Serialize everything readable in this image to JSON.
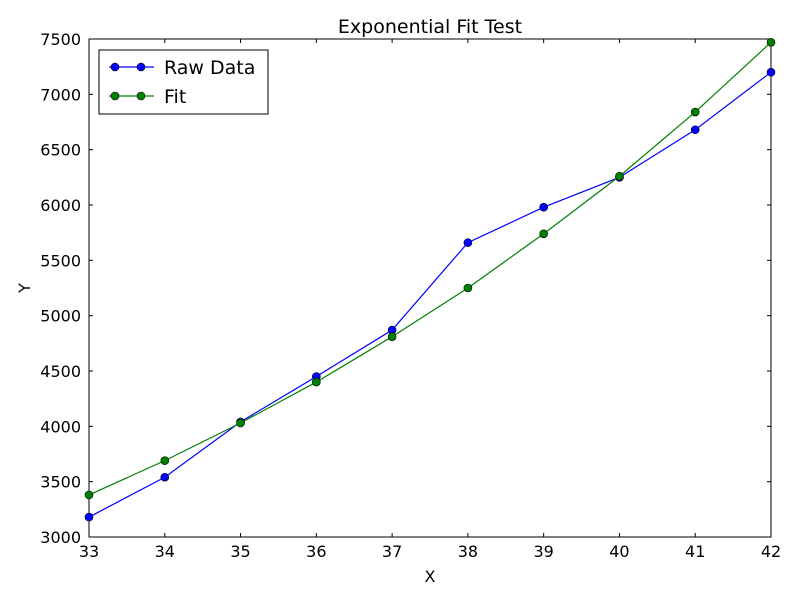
{
  "chart_data": {
    "type": "line",
    "title": "Exponential Fit Test",
    "xlabel": "X",
    "ylabel": "Y",
    "xlim": [
      33,
      42
    ],
    "ylim": [
      3000,
      7500
    ],
    "x": [
      33,
      34,
      35,
      36,
      37,
      38,
      39,
      40,
      41,
      42
    ],
    "xticks": [
      "33",
      "34",
      "35",
      "36",
      "37",
      "38",
      "39",
      "40",
      "41",
      "42"
    ],
    "yticks": [
      "3000",
      "3500",
      "4000",
      "4500",
      "5000",
      "5500",
      "6000",
      "6500",
      "7000",
      "7500"
    ],
    "grid": false,
    "legend_position": "upper-left",
    "series": [
      {
        "name": "Raw Data",
        "color": "#0000ff",
        "marker": "circle",
        "values": [
          3180,
          3540,
          4040,
          4450,
          4870,
          5660,
          5980,
          6250,
          6680,
          7200
        ]
      },
      {
        "name": "Fit",
        "color": "#008000",
        "marker": "circle",
        "values": [
          3380,
          3690,
          4030,
          4400,
          4810,
          5250,
          5740,
          6260,
          6840,
          7470
        ]
      }
    ]
  }
}
